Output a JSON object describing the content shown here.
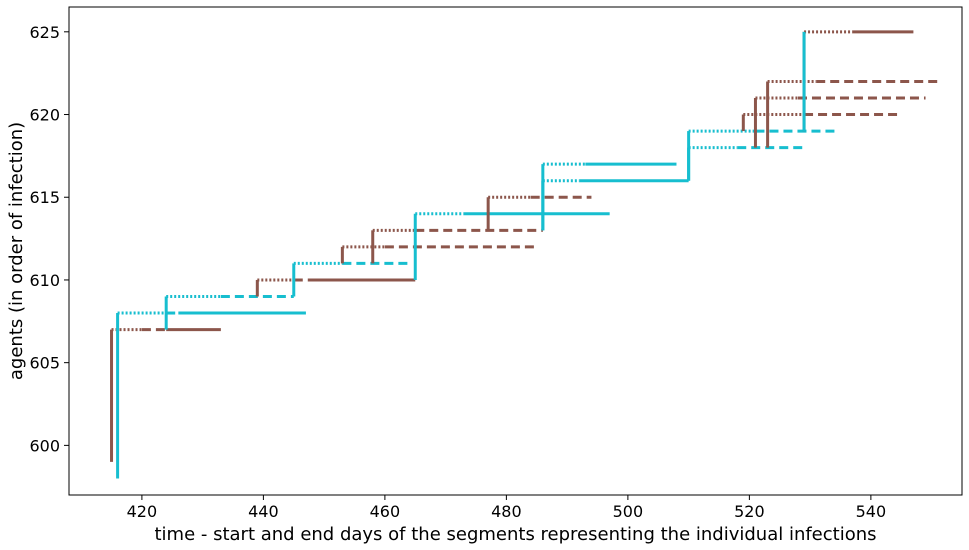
{
  "chart_data": {
    "type": "line",
    "title": "",
    "xlabel": "time - start and end days of the segments representing the individual infections",
    "ylabel": "agents (in order of infection)",
    "xlim": [
      408,
      555
    ],
    "ylim": [
      597,
      626.5
    ],
    "xticks": [
      420,
      440,
      460,
      480,
      500,
      520,
      540
    ],
    "yticks": [
      600,
      605,
      610,
      615,
      620,
      625
    ],
    "grid": false,
    "legend": "none",
    "colors": {
      "cyan": "#17becf",
      "brown": "#8c564b"
    },
    "segments": [
      {
        "agent": 607,
        "color": "brown",
        "parent": 599,
        "start": 415,
        "dotted_end": 420,
        "dashed_end": 424,
        "solid_end": 433
      },
      {
        "agent": 608,
        "color": "cyan",
        "parent": 598,
        "start": 416,
        "dotted_end": 424,
        "dashed_end": 426,
        "solid_end": 447
      },
      {
        "agent": 609,
        "color": "cyan",
        "parent": 607,
        "start": 424,
        "dotted_end": 433,
        "dashed_end": 445,
        "solid_end": 445
      },
      {
        "agent": 610,
        "color": "brown",
        "parent": 609,
        "start": 439,
        "dotted_end": 445,
        "dashed_end": 448,
        "solid_end": 465
      },
      {
        "agent": 611,
        "color": "cyan",
        "parent": 609,
        "start": 445,
        "dotted_end": 453,
        "dashed_end": 464,
        "solid_end": 464
      },
      {
        "agent": 612,
        "color": "brown",
        "parent": 611,
        "start": 453,
        "dotted_end": 460,
        "dashed_end": 485,
        "solid_end": 485
      },
      {
        "agent": 613,
        "color": "brown",
        "parent": 611,
        "start": 458,
        "dotted_end": 465,
        "dashed_end": 486,
        "solid_end": 486
      },
      {
        "agent": 614,
        "color": "cyan",
        "parent": 610,
        "start": 465,
        "dotted_end": 473,
        "dashed_end": 473,
        "solid_end": 497
      },
      {
        "agent": 615,
        "color": "brown",
        "parent": 613,
        "start": 477,
        "dotted_end": 484,
        "dashed_end": 494,
        "solid_end": 494
      },
      {
        "agent": 616,
        "color": "cyan",
        "parent": 613,
        "start": 486,
        "dotted_end": 492,
        "dashed_end": 492,
        "solid_end": 510
      },
      {
        "agent": 617,
        "color": "cyan",
        "parent": 613,
        "start": 486,
        "dotted_end": 493,
        "dashed_end": 493,
        "solid_end": 508
      },
      {
        "agent": 618,
        "color": "cyan",
        "parent": 616,
        "start": 510,
        "dotted_end": 518,
        "dashed_end": 529,
        "solid_end": 529
      },
      {
        "agent": 619,
        "color": "cyan",
        "parent": 616,
        "start": 510,
        "dotted_end": 521,
        "dashed_end": 534,
        "solid_end": 534
      },
      {
        "agent": 620,
        "color": "brown",
        "parent": 619,
        "start": 519,
        "dotted_end": 529,
        "dashed_end": 545,
        "solid_end": 545
      },
      {
        "agent": 621,
        "color": "brown",
        "parent": 618,
        "start": 521,
        "dotted_end": 528,
        "dashed_end": 549,
        "solid_end": 549
      },
      {
        "agent": 622,
        "color": "brown",
        "parent": 618,
        "start": 523,
        "dotted_end": 531,
        "dashed_end": 551,
        "solid_end": 551
      },
      {
        "agent": 625,
        "color": "brown",
        "parent": 619,
        "start": 529,
        "dotted_end": 537,
        "dashed_end": 537,
        "solid_end": 547
      }
    ],
    "cyan_verticals": [
      {
        "x": 529,
        "y0": 619,
        "y1": 625
      }
    ]
  }
}
